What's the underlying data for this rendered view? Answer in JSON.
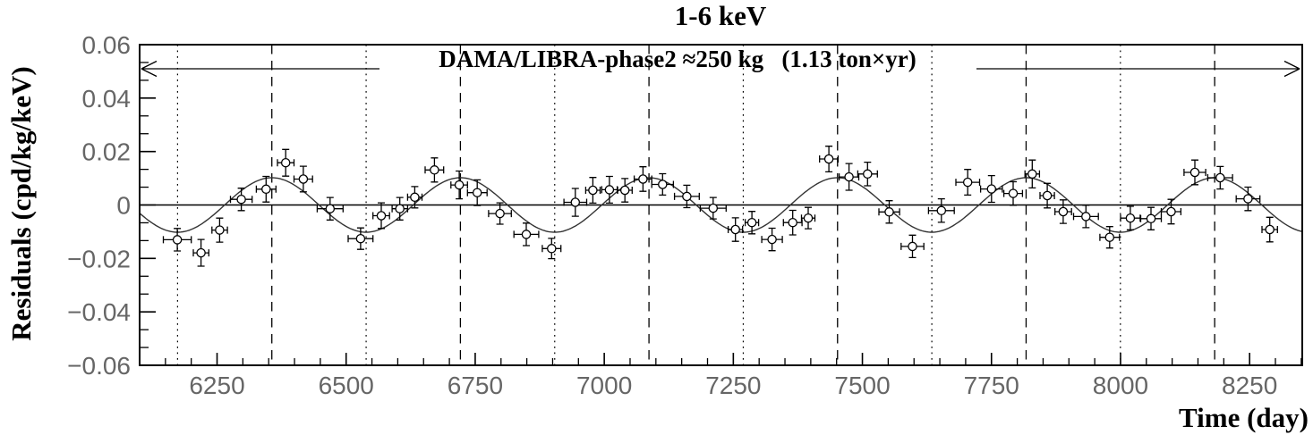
{
  "title": "1-6 keV",
  "annotation": "DAMA/LIBRA-phase2 ≈250 kg   (1.13 ton×yr)",
  "chart_data": {
    "type": "scatter",
    "title": "1-6 keV",
    "xlabel": "Time (day)",
    "ylabel": "Residuals (cpd/kg/keV)",
    "annotation": "DAMA/LIBRA-phase2 ≈250 kg   (1.13 ton×yr)",
    "xlim": [
      6100,
      8352
    ],
    "ylim": [
      -0.06,
      0.06
    ],
    "grid": false,
    "x_major_ticks": [
      6250,
      6500,
      6750,
      7000,
      7250,
      7500,
      7750,
      8000,
      8250
    ],
    "x_minor_step": 50,
    "y_major_ticks": [
      0.06,
      0.04,
      0.02,
      0,
      -0.02,
      -0.04,
      -0.06
    ],
    "y_tick_labels": [
      "0.06",
      "0.04",
      "0.02",
      "0",
      "−0.02",
      "−0.04",
      "−0.06"
    ],
    "y_minor_per_major": 3,
    "zero_line": 0,
    "vlines_dotted_minima": [
      6173.5,
      6538.75,
      6904.0,
      7269.25,
      7634.5,
      7999.75
    ],
    "vlines_dashed_maxima": [
      6356.1,
      6721.35,
      7086.6,
      7451.85,
      7817.1,
      8182.35
    ],
    "fit_curve": {
      "shape": "cosine",
      "amplitude": 0.0102,
      "period": 365.25,
      "max_at": 6356.1,
      "mean": 0
    },
    "point_format": [
      "day",
      "residual",
      "err_day",
      "err_residual"
    ],
    "points": [
      [
        6173,
        -0.013,
        27,
        0.0042
      ],
      [
        6219,
        -0.0179,
        15,
        0.005
      ],
      [
        6255,
        -0.0094,
        15,
        0.0045
      ],
      [
        6297,
        0.0021,
        21,
        0.0042
      ],
      [
        6345,
        0.0059,
        19,
        0.0048
      ],
      [
        6383,
        0.0158,
        16,
        0.005
      ],
      [
        6417,
        0.0097,
        18,
        0.0048
      ],
      [
        6469,
        -0.0014,
        25,
        0.0042
      ],
      [
        6528,
        -0.0126,
        24,
        0.004
      ],
      [
        6568,
        -0.004,
        16,
        0.0048
      ],
      [
        6604,
        -0.0014,
        15,
        0.0042
      ],
      [
        6633,
        0.0029,
        14,
        0.004
      ],
      [
        6671,
        0.0131,
        18,
        0.0045
      ],
      [
        6719,
        0.0075,
        16,
        0.0052
      ],
      [
        6754,
        0.0046,
        19,
        0.0048
      ],
      [
        6798,
        -0.0032,
        22,
        0.004
      ],
      [
        6849,
        -0.011,
        24,
        0.0042
      ],
      [
        6898,
        -0.0163,
        18,
        0.0038
      ],
      [
        6944,
        0.001,
        22,
        0.0052
      ],
      [
        6978,
        0.0055,
        14,
        0.0048
      ],
      [
        7010,
        0.0057,
        15,
        0.005
      ],
      [
        7040,
        0.0055,
        14,
        0.0044
      ],
      [
        7075,
        0.0097,
        17,
        0.0046
      ],
      [
        7113,
        0.0077,
        21,
        0.004
      ],
      [
        7160,
        0.0032,
        24,
        0.0042
      ],
      [
        7211,
        -0.0012,
        25,
        0.004
      ],
      [
        7254,
        -0.0092,
        14,
        0.0044
      ],
      [
        7286,
        -0.0066,
        13,
        0.0042
      ],
      [
        7325,
        -0.0129,
        20,
        0.0042
      ],
      [
        7365,
        -0.0066,
        18,
        0.0046
      ],
      [
        7395,
        -0.0049,
        13,
        0.004
      ],
      [
        7435,
        0.0172,
        18,
        0.0048
      ],
      [
        7474,
        0.0105,
        19,
        0.005
      ],
      [
        7510,
        0.0116,
        19,
        0.0044
      ],
      [
        7552,
        -0.0026,
        20,
        0.0042
      ],
      [
        7597,
        -0.0155,
        22,
        0.0042
      ],
      [
        7653,
        -0.0021,
        25,
        0.0044
      ],
      [
        7704,
        0.0085,
        23,
        0.0048
      ],
      [
        7750,
        0.006,
        21,
        0.005
      ],
      [
        7792,
        0.0043,
        18,
        0.0044
      ],
      [
        7829,
        0.0116,
        14,
        0.0052
      ],
      [
        7858,
        0.0035,
        14,
        0.0046
      ],
      [
        7889,
        -0.0025,
        16,
        0.0044
      ],
      [
        7933,
        -0.0043,
        24,
        0.0042
      ],
      [
        7979,
        -0.0121,
        19,
        0.004
      ],
      [
        8019,
        -0.0049,
        19,
        0.0044
      ],
      [
        8059,
        -0.0051,
        20,
        0.0042
      ],
      [
        8098,
        -0.0025,
        19,
        0.0046
      ],
      [
        8144,
        0.0122,
        21,
        0.0046
      ],
      [
        8193,
        0.0102,
        24,
        0.0042
      ],
      [
        8247,
        0.0023,
        23,
        0.0044
      ],
      [
        8289,
        -0.0092,
        15,
        0.0046
      ]
    ]
  }
}
